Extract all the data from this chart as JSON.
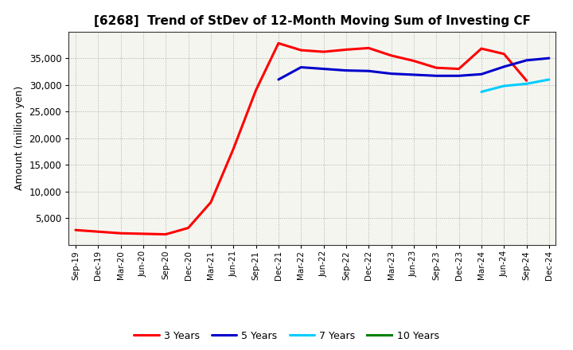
{
  "title": "[6268]  Trend of StDev of 12-Month Moving Sum of Investing CF",
  "ylabel": "Amount (million yen)",
  "background_color": "#ffffff",
  "plot_bg_color": "#f5f5f0",
  "grid_color": "#999999",
  "x_labels": [
    "Sep-19",
    "Dec-19",
    "Mar-20",
    "Jun-20",
    "Sep-20",
    "Dec-20",
    "Mar-21",
    "Jun-21",
    "Sep-21",
    "Dec-21",
    "Mar-22",
    "Jun-22",
    "Sep-22",
    "Dec-22",
    "Mar-23",
    "Jun-23",
    "Sep-23",
    "Dec-23",
    "Mar-24",
    "Jun-24",
    "Sep-24",
    "Dec-24"
  ],
  "series": {
    "3 Years": {
      "color": "#ff0000",
      "data": [
        2800,
        2500,
        2200,
        2100,
        2000,
        3200,
        8000,
        18000,
        29000,
        37800,
        36500,
        36200,
        36600,
        36900,
        35500,
        34500,
        33200,
        33000,
        36800,
        35800,
        30800,
        null
      ]
    },
    "5 Years": {
      "color": "#0000cc",
      "data": [
        null,
        null,
        null,
        null,
        null,
        null,
        null,
        null,
        null,
        31000,
        33300,
        33000,
        32700,
        32600,
        32100,
        31900,
        31700,
        31700,
        32000,
        33400,
        34600,
        35000
      ]
    },
    "7 Years": {
      "color": "#00ccff",
      "data": [
        null,
        null,
        null,
        null,
        null,
        null,
        null,
        null,
        null,
        null,
        null,
        null,
        null,
        null,
        null,
        null,
        null,
        null,
        28700,
        29800,
        30200,
        31000
      ]
    },
    "10 Years": {
      "color": "#008000",
      "data": [
        null,
        null,
        null,
        null,
        null,
        null,
        null,
        null,
        null,
        null,
        null,
        null,
        null,
        null,
        null,
        null,
        null,
        null,
        null,
        null,
        null,
        null
      ]
    }
  },
  "ylim": [
    0,
    40000
  ],
  "yticks": [
    5000,
    10000,
    15000,
    20000,
    25000,
    30000,
    35000
  ],
  "line_width": 2.2
}
